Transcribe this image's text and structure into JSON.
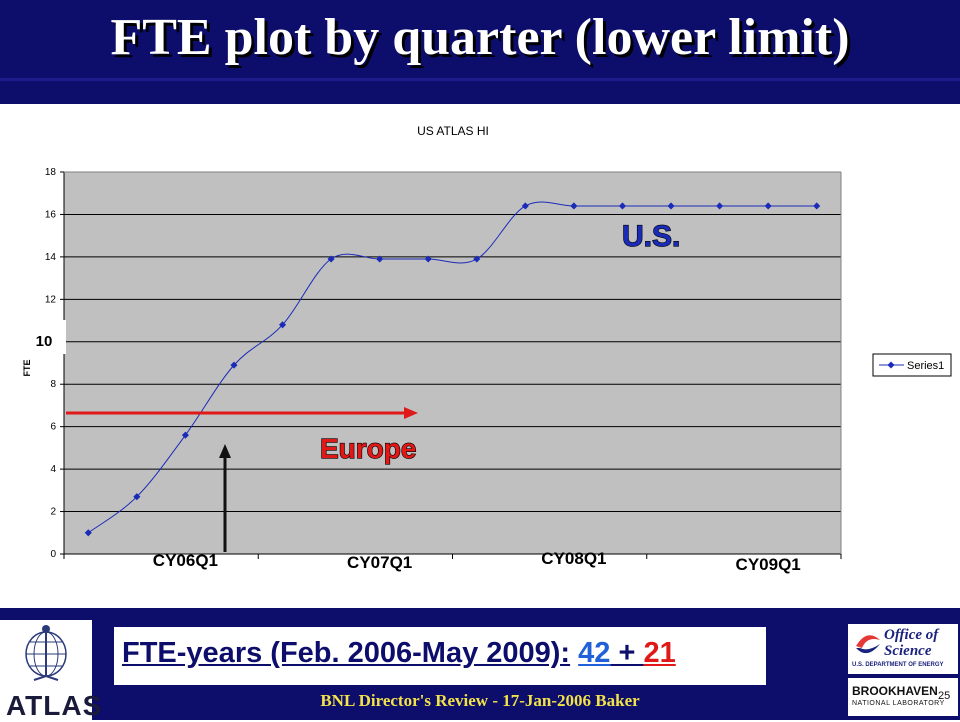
{
  "slide": {
    "title": "FTE plot by quarter  (lower  limit)",
    "footer": "BNL Director's Review  - 17-Jan-2006  Baker",
    "page_number": "25"
  },
  "fte_years": {
    "label": "FTE-years (Feb.  2006-May 2009):",
    "us": "42",
    "plus": " + ",
    "europe": "21"
  },
  "logos": {
    "atlas": "ATLAS",
    "office_of_science_title": "Office of Science",
    "office_of_science_sub": "U.S. DEPARTMENT OF ENERGY",
    "bnl_name": "BROOKHAVEN",
    "bnl_sub": "NATIONAL LABORATORY"
  },
  "annotations": {
    "us_label": "U.S.",
    "europe_label": "Europe",
    "level_box": "10",
    "europe_color": "#e01818",
    "us_color": "#1a2bb8"
  },
  "chart_data": {
    "type": "line",
    "title": "US ATLAS HI",
    "xlabel": "",
    "ylabel": "FTE",
    "ylim": [
      0,
      18
    ],
    "yticks": [
      0,
      2,
      4,
      6,
      8,
      10,
      12,
      14,
      16,
      18
    ],
    "x_quarter_labels": [
      {
        "label": "CY06Q1",
        "at": 2
      },
      {
        "label": "CY07Q1",
        "at": 6
      },
      {
        "label": "CY08Q1",
        "at": 10
      },
      {
        "label": "CY09Q1",
        "at": 14
      }
    ],
    "grid": true,
    "legend": "right",
    "series": [
      {
        "name": "Series1",
        "color": "#1a2bb8",
        "x": [
          0,
          1,
          2,
          3,
          4,
          5,
          6,
          7,
          8,
          9,
          10,
          11,
          12,
          13,
          14,
          15
        ],
        "values": [
          1.0,
          2.7,
          5.6,
          8.9,
          10.8,
          13.9,
          13.9,
          13.9,
          13.9,
          16.4,
          16.4,
          16.4,
          16.4,
          16.4,
          16.4,
          16.4
        ]
      }
    ]
  }
}
